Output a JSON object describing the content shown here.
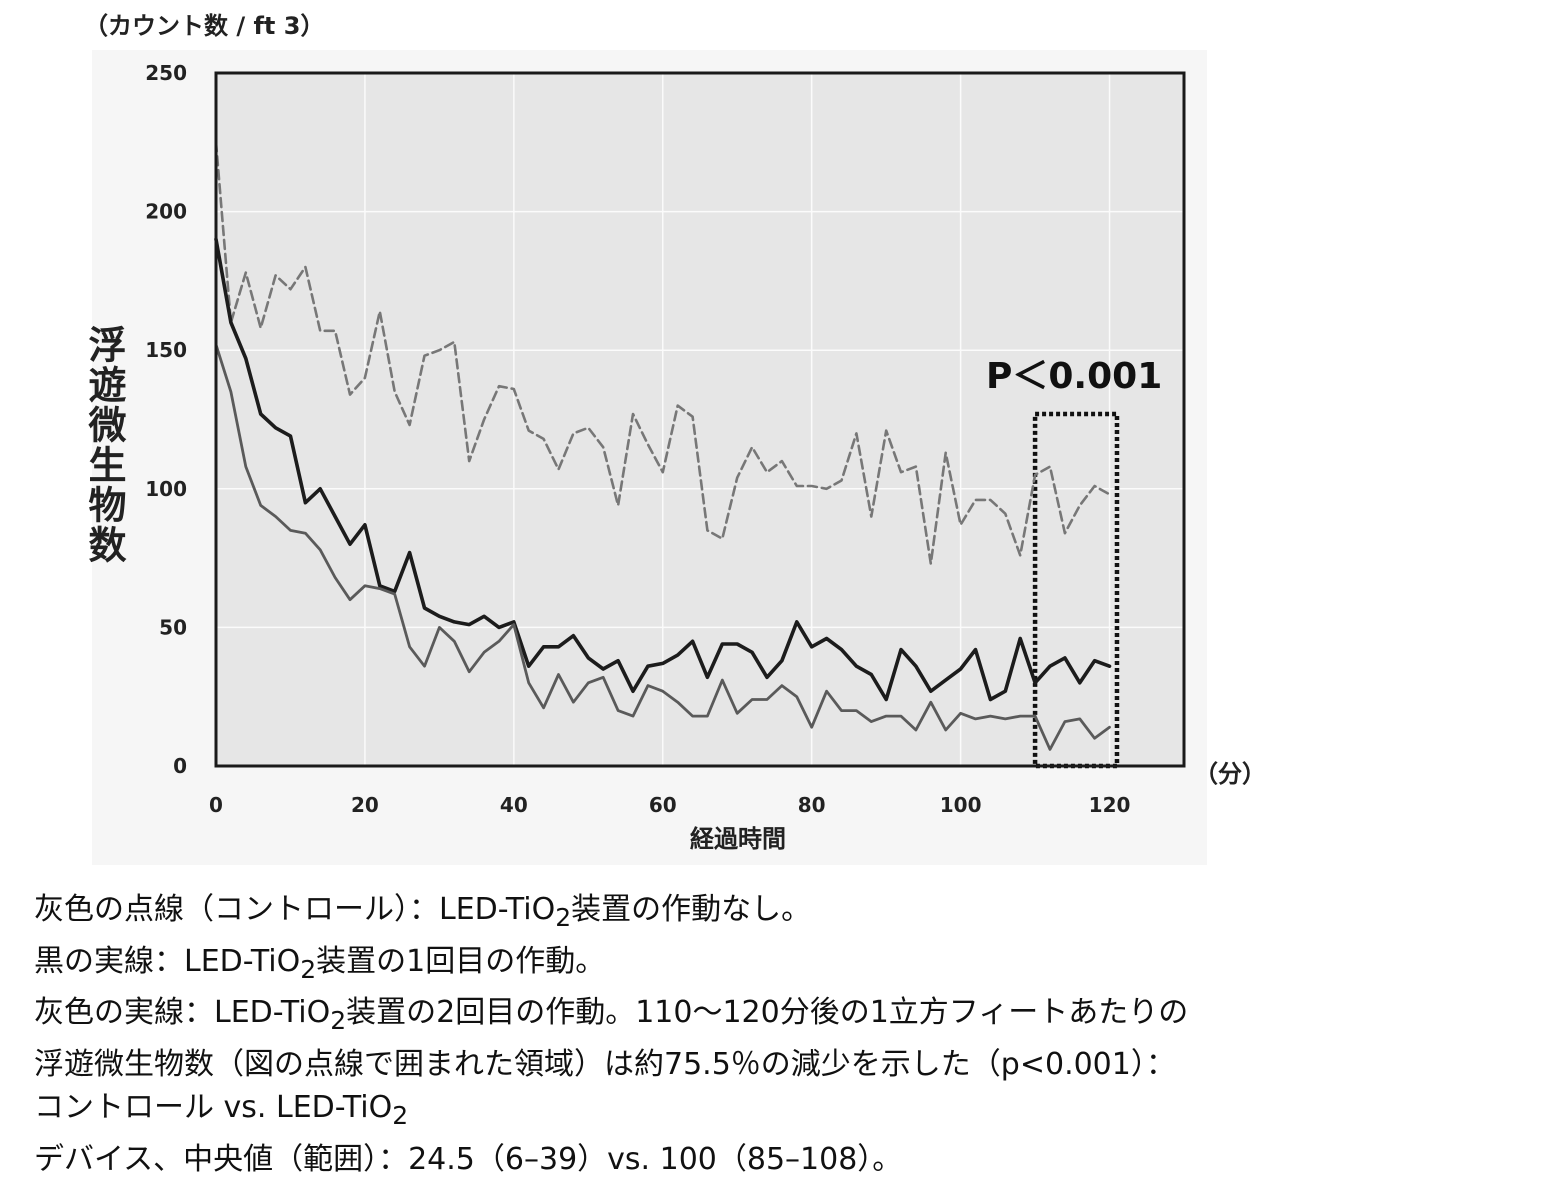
{
  "chart_data": {
    "type": "line",
    "title": "",
    "ylabel": "浮遊微生物数",
    "y_unit": "（カウント数 / ft 3）",
    "xlabel": "経過時間",
    "x_unit": "（分）",
    "xlim": [
      0,
      130
    ],
    "ylim": [
      0,
      250
    ],
    "x_ticks": [
      0,
      20,
      40,
      60,
      80,
      100,
      120
    ],
    "y_ticks": [
      0,
      50,
      100,
      150,
      200,
      250
    ],
    "grid": true,
    "legend": "none",
    "annotation": "P＜0.001",
    "highlight_range": {
      "x": [
        110,
        121
      ],
      "y": [
        0,
        127
      ]
    },
    "x": [
      0,
      2,
      4,
      6,
      8,
      10,
      12,
      14,
      16,
      18,
      20,
      22,
      24,
      26,
      28,
      30,
      32,
      34,
      36,
      38,
      40,
      42,
      44,
      46,
      48,
      50,
      52,
      54,
      56,
      58,
      60,
      62,
      64,
      66,
      68,
      70,
      72,
      74,
      76,
      78,
      80,
      82,
      84,
      86,
      88,
      90,
      92,
      94,
      96,
      98,
      100,
      102,
      104,
      106,
      108,
      110,
      112,
      114,
      116,
      118,
      120
    ],
    "series": [
      {
        "style": "gray-dashed",
        "color": "#777777",
        "values": [
          225,
          160,
          178,
          158,
          177,
          172,
          180,
          157,
          157,
          134,
          140,
          164,
          135,
          123,
          148,
          150,
          153,
          110,
          125,
          137,
          136,
          121,
          118,
          107,
          120,
          122,
          115,
          94,
          127,
          116,
          106,
          130,
          126,
          85,
          82,
          104,
          115,
          106,
          110,
          101,
          101,
          100,
          103,
          120,
          90,
          121,
          106,
          108,
          73,
          113,
          87,
          96,
          96,
          91,
          76,
          105,
          108,
          84,
          94,
          101,
          98
        ]
      },
      {
        "style": "black-solid",
        "color": "#1c1c1c",
        "values": [
          190,
          160,
          147,
          127,
          122,
          119,
          95,
          100,
          90,
          80,
          87,
          65,
          63,
          77,
          57,
          54,
          52,
          51,
          54,
          50,
          52,
          36,
          43,
          43,
          47,
          39,
          35,
          38,
          27,
          36,
          37,
          40,
          45,
          32,
          44,
          44,
          41,
          32,
          38,
          52,
          43,
          46,
          42,
          36,
          33,
          24,
          42,
          36,
          27,
          31,
          35,
          42,
          24,
          27,
          46,
          30,
          36,
          39,
          30,
          38,
          36
        ]
      },
      {
        "style": "gray-solid",
        "color": "#5a5a5a",
        "values": [
          152,
          135,
          108,
          94,
          90,
          85,
          84,
          78,
          68,
          60,
          65,
          64,
          62,
          43,
          36,
          50,
          45,
          34,
          41,
          45,
          51,
          30,
          21,
          33,
          23,
          30,
          32,
          20,
          18,
          29,
          27,
          23,
          18,
          18,
          31,
          19,
          24,
          24,
          29,
          25,
          14,
          27,
          20,
          20,
          16,
          18,
          18,
          13,
          23,
          13,
          19,
          17,
          18,
          17,
          18,
          18,
          6,
          16,
          17,
          10,
          14
        ]
      }
    ]
  },
  "caption": {
    "line1": {
      "pre": "灰色の点線（コントロール）：LED-TiO",
      "sub": "2",
      "post": "装置の作動なし。"
    },
    "line2": {
      "pre": "黒の実線：LED-TiO",
      "sub": "2",
      "post": "装置の1回目の作動。"
    },
    "line3": {
      "pre": "灰色の実線：LED-TiO",
      "sub": "2",
      "post": "装置の2回目の作動。110～120分後の1立方フィートあたりの"
    },
    "line4": "浮遊微生物数（図の点線で囲まれた領域）は約75.5％の減少を示した（p<0.001）：",
    "line5": {
      "pre": "コントロール vs. LED-TiO",
      "sub": "2"
    },
    "line6": "デバイス、中央値（範囲）：24.5（6–39）vs. 100（85–108）。"
  }
}
